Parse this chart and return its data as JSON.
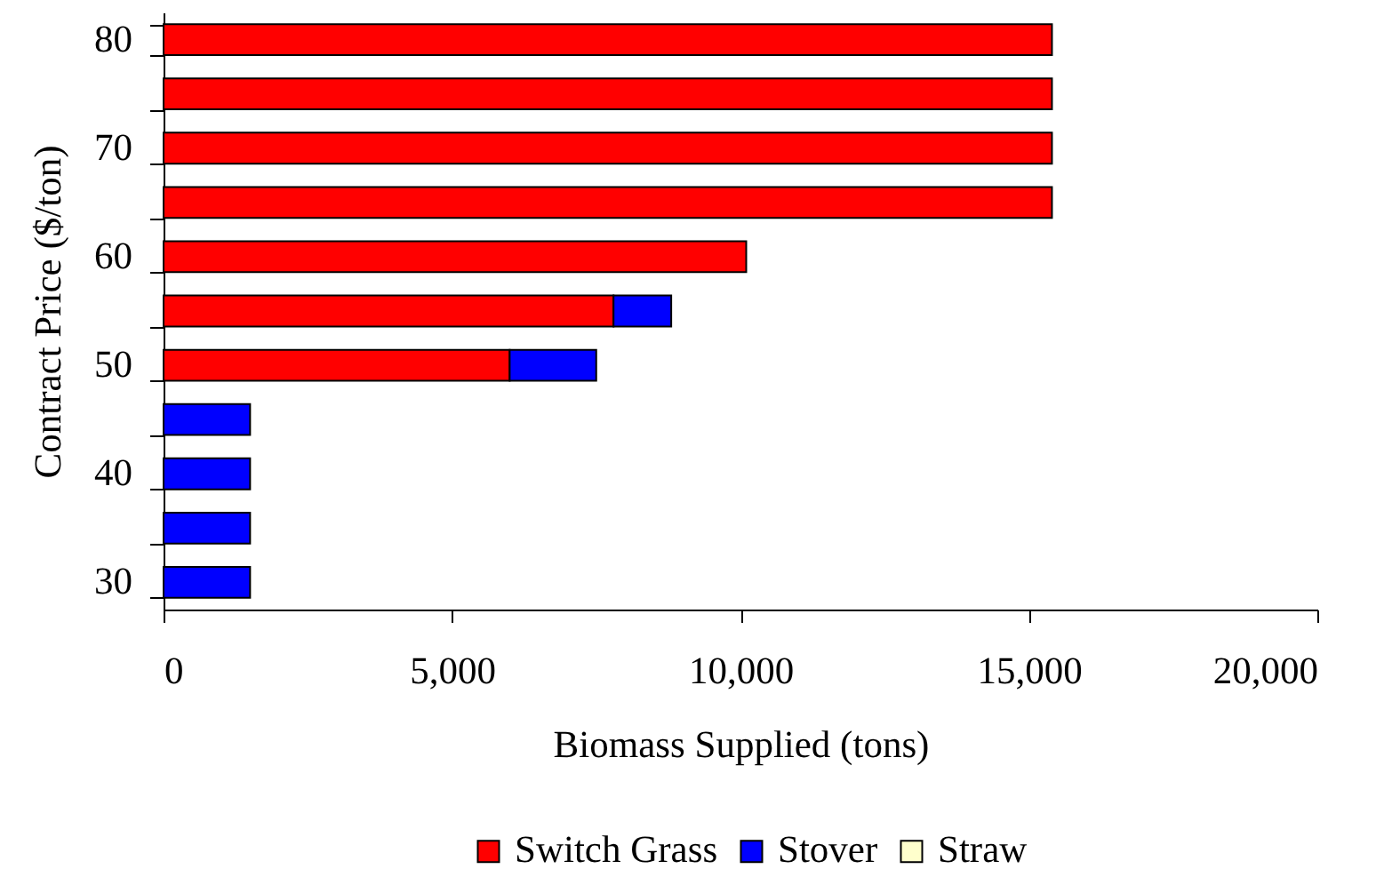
{
  "chart_data": {
    "type": "bar",
    "orientation": "horizontal",
    "stacked": true,
    "categories": [
      "80",
      null,
      "70",
      null,
      "60",
      null,
      "50",
      null,
      "40",
      null,
      "30"
    ],
    "series": [
      {
        "name": "Switch Grass",
        "color": "#ff0000",
        "values": [
          15400,
          15400,
          15400,
          15400,
          10100,
          7800,
          6000,
          null,
          null,
          null,
          null
        ]
      },
      {
        "name": "Stover",
        "color": "#0000ff",
        "values": [
          null,
          null,
          null,
          null,
          null,
          1000,
          1500,
          1500,
          1500,
          1500,
          1500
        ]
      },
      {
        "name": "Straw",
        "color": "#ffffcc",
        "values": [
          null,
          null,
          null,
          null,
          null,
          null,
          null,
          null,
          null,
          null,
          null
        ]
      }
    ],
    "xlim": [
      0,
      20000
    ],
    "xticks": [
      0,
      {
        "value": 5000,
        "label": "5,000"
      },
      {
        "value": 10000,
        "label": "10,000"
      },
      {
        "value": 15000,
        "label": "15,000"
      },
      {
        "value": 20000,
        "label": "20,000"
      }
    ],
    "xlabel": "Biomass Supplied (tons)",
    "ylabel": "Contract Price ($/ton)",
    "legend": "bottom",
    "grid": false
  }
}
